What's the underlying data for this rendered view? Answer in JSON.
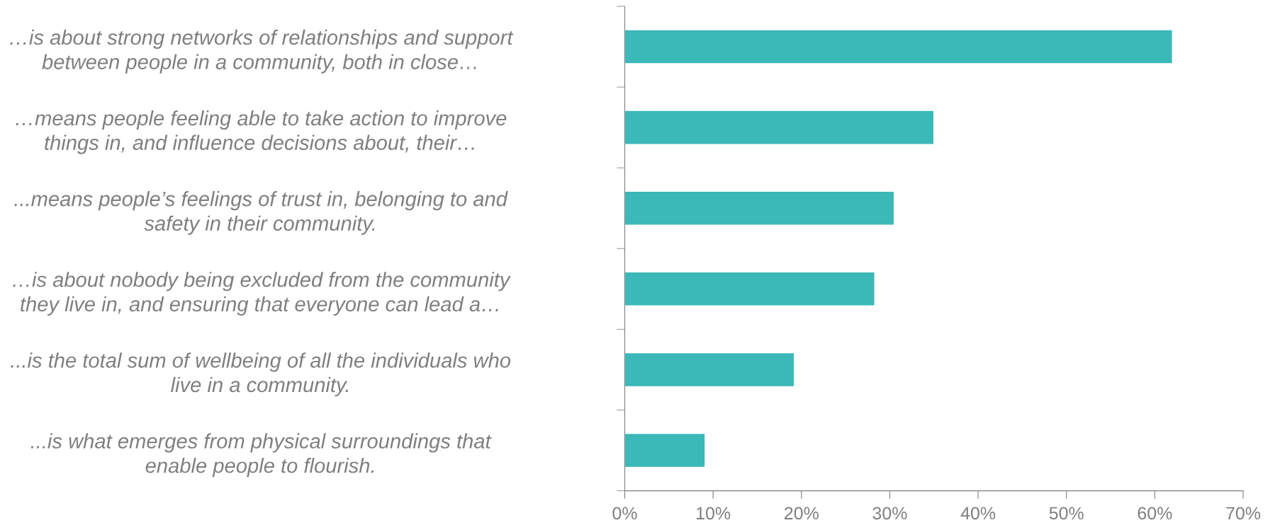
{
  "chart_data": {
    "type": "bar",
    "orientation": "horizontal",
    "categories": [
      "…is about strong networks of relationships and support\nbetween people in a community, both in close…",
      "…means people feeling able to take action to improve\nthings in, and influence decisions about, their…",
      "...means people’s feelings of trust in, belonging to and\nsafety in their community.",
      "…is about nobody being excluded from the community\nthey live in, and ensuring that everyone can lead a…",
      "...is the total sum of wellbeing of all the individuals who\nlive in a community.",
      "...is what emerges from physical surroundings that\nenable people to flourish."
    ],
    "values": [
      62,
      35,
      30.5,
      28.3,
      19.2,
      9.1
    ],
    "color": "#3bb8b8",
    "xlim": [
      0,
      70
    ],
    "xticks": [
      {
        "value": 0,
        "label": "0%"
      },
      {
        "value": 10,
        "label": "10%"
      },
      {
        "value": 20,
        "label": "20%"
      },
      {
        "value": 30,
        "label": "30%"
      },
      {
        "value": 40,
        "label": "40%"
      },
      {
        "value": 50,
        "label": "50%"
      },
      {
        "value": 60,
        "label": "60%"
      },
      {
        "value": 70,
        "label": "70%"
      }
    ],
    "grid": false,
    "legend": false
  }
}
